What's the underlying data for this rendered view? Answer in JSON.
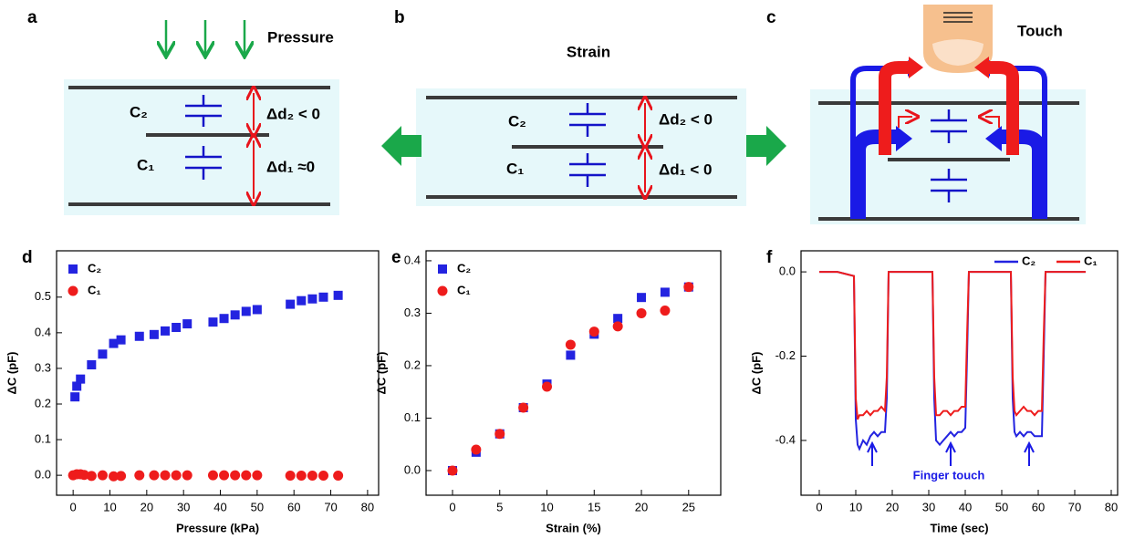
{
  "diagrams": {
    "a": {
      "panel_label": "a",
      "force": "Pressure",
      "upper_cap": "C₂",
      "upper_gap": "Δd₂ < 0",
      "lower_cap": "C₁",
      "lower_gap": "Δd₁ ≈0"
    },
    "b": {
      "panel_label": "b",
      "force": "Strain",
      "upper_cap": "C₂",
      "upper_gap": "Δd₂ < 0",
      "lower_cap": "C₁",
      "lower_gap": "Δd₁ < 0"
    },
    "c": {
      "panel_label": "c",
      "force": "Touch"
    }
  },
  "chart_data": [
    {
      "type": "scatter",
      "panel_label": "d",
      "xlabel": "Pressure (kPa)",
      "ylabel": "ΔC (pF)",
      "xlim": [
        -4.5,
        83
      ],
      "ylim": [
        -0.056,
        0.63
      ],
      "xticks": [
        0,
        10,
        20,
        30,
        40,
        50,
        60,
        70,
        80
      ],
      "yticks": [
        {
          "value": 0,
          "label": "0.0"
        },
        0.1,
        0.2,
        0.3,
        0.4,
        0.5
      ],
      "legend": "upper left",
      "series": [
        {
          "name": "C₂",
          "color": "#2323e0",
          "marker": "square",
          "x": [
            0.5,
            1,
            2,
            5,
            8,
            11,
            13,
            18,
            22,
            25,
            28,
            31,
            38,
            41,
            44,
            47,
            50,
            59,
            62,
            65,
            68,
            72
          ],
          "values": [
            0.22,
            0.25,
            0.27,
            0.31,
            0.34,
            0.37,
            0.38,
            0.39,
            0.395,
            0.405,
            0.415,
            0.425,
            0.43,
            0.44,
            0.45,
            0.46,
            0.465,
            0.48,
            0.49,
            0.495,
            0.5,
            0.505
          ]
        },
        {
          "name": "C₁",
          "color": "#ee1c1c",
          "marker": "circle",
          "x": [
            0,
            1,
            2,
            3,
            5,
            8,
            11,
            13,
            18,
            22,
            25,
            28,
            31,
            38,
            41,
            44,
            47,
            50,
            59,
            62,
            65,
            68,
            72
          ],
          "values": [
            0,
            0.003,
            0.003,
            0.001,
            -0.002,
            0,
            -0.003,
            -0.002,
            0,
            0,
            0,
            0,
            0,
            0,
            0,
            0,
            0,
            0,
            -0.001,
            -0.001,
            -0.001,
            -0.001,
            -0.001
          ]
        }
      ]
    },
    {
      "type": "scatter",
      "panel_label": "e",
      "xlabel": "Strain (%)",
      "ylabel": "ΔC (pF)",
      "xlim": [
        -2.8,
        28.4
      ],
      "ylim": [
        -0.047,
        0.419
      ],
      "xticks": [
        0,
        5,
        10,
        15,
        20,
        25
      ],
      "yticks": [
        {
          "value": 0,
          "label": "0.0"
        },
        0.1,
        0.2,
        0.3,
        0.4
      ],
      "legend": "upper left",
      "series": [
        {
          "name": "C₂",
          "color": "#2323e0",
          "marker": "square",
          "x": [
            0,
            2.5,
            5,
            7.5,
            10,
            12.5,
            15,
            17.5,
            20,
            22.5,
            25
          ],
          "values": [
            0,
            0.035,
            0.07,
            0.12,
            0.165,
            0.22,
            0.26,
            0.29,
            0.33,
            0.34,
            0.35
          ]
        },
        {
          "name": "C₁",
          "color": "#ee1c1c",
          "marker": "circle",
          "x": [
            0,
            2.5,
            5,
            7.5,
            10,
            12.5,
            15,
            17.5,
            20,
            22.5,
            25
          ],
          "values": [
            0,
            0.04,
            0.07,
            0.12,
            0.16,
            0.24,
            0.265,
            0.275,
            0.3,
            0.305,
            0.35
          ]
        }
      ]
    },
    {
      "type": "line",
      "panel_label": "f",
      "xlabel": "Time (sec)",
      "ylabel": "ΔC (pF)",
      "xlim": [
        -5,
        81.75
      ],
      "ylim": [
        -0.53,
        0.05
      ],
      "xticks": [
        0,
        10,
        20,
        30,
        40,
        50,
        60,
        70,
        80
      ],
      "yticks": [
        {
          "value": 0,
          "label": "0.0"
        },
        -0.2,
        -0.4
      ],
      "legend": "upper right",
      "annotation": "Finger touch",
      "x": [
        0,
        5,
        9.5,
        10,
        10.5,
        11,
        12,
        13,
        14,
        15,
        16,
        17,
        18,
        18.5,
        19,
        20,
        25,
        31,
        31.5,
        32,
        33,
        34,
        35,
        36,
        37,
        38,
        39,
        40,
        40.5,
        41,
        45,
        50,
        52.5,
        53,
        53.5,
        54,
        55,
        56,
        57,
        58,
        59,
        60,
        61,
        61.5,
        62,
        65,
        70,
        73
      ],
      "series": [
        {
          "name": "C₂",
          "color": "#2323e0",
          "values": [
            0,
            0,
            -0.01,
            -0.35,
            -0.41,
            -0.42,
            -0.4,
            -0.41,
            -0.39,
            -0.38,
            -0.39,
            -0.38,
            -0.38,
            -0.3,
            0,
            0,
            0,
            0,
            -0.3,
            -0.4,
            -0.41,
            -0.4,
            -0.39,
            -0.38,
            -0.39,
            -0.38,
            -0.38,
            -0.37,
            -0.2,
            0,
            0,
            0,
            0,
            -0.3,
            -0.38,
            -0.39,
            -0.38,
            -0.39,
            -0.38,
            -0.38,
            -0.39,
            -0.39,
            -0.39,
            -0.2,
            0,
            0,
            0,
            0
          ]
        },
        {
          "name": "C₁",
          "color": "#ee1c1c",
          "values": [
            0,
            0,
            -0.01,
            -0.3,
            -0.35,
            -0.34,
            -0.34,
            -0.33,
            -0.34,
            -0.33,
            -0.33,
            -0.32,
            -0.33,
            -0.25,
            0,
            0,
            0,
            0,
            -0.25,
            -0.34,
            -0.34,
            -0.33,
            -0.33,
            -0.34,
            -0.33,
            -0.33,
            -0.32,
            -0.32,
            -0.15,
            0,
            0,
            0,
            0,
            -0.25,
            -0.33,
            -0.34,
            -0.33,
            -0.32,
            -0.33,
            -0.33,
            -0.34,
            -0.33,
            -0.33,
            -0.15,
            0,
            0,
            0,
            0
          ]
        }
      ]
    }
  ]
}
